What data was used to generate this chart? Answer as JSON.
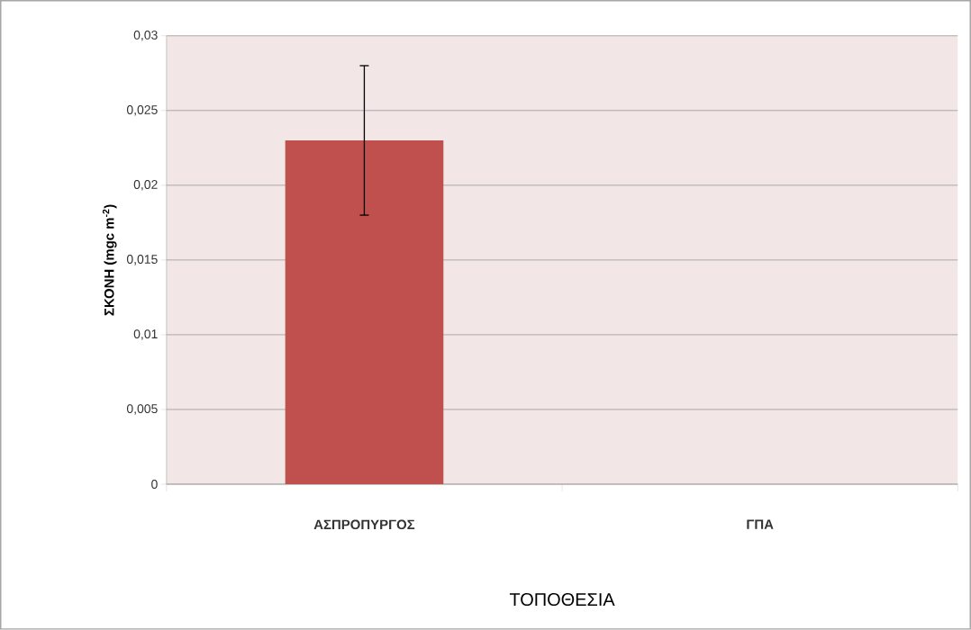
{
  "chart_data": {
    "type": "bar",
    "xlabel": "ΤΟΠΟΘΕΣΙΑ",
    "ylabel": "ΣΚΟΝΗ (mgc m$^{-2}$)",
    "categories": [
      "ΑΣΠΡΟΠΥΡΓΟΣ",
      "ΓΠΑ"
    ],
    "values": [
      0.023,
      null
    ],
    "errors": [
      0.005,
      null
    ],
    "color": "#c0504d",
    "ylim": [
      0,
      0.03
    ],
    "yticks": [
      0,
      {
        "value": 0.005,
        "label": "0,005"
      },
      {
        "value": 0.01,
        "label": "0,01"
      },
      {
        "value": 0.015,
        "label": "0,015"
      },
      {
        "value": 0.02,
        "label": "0,02"
      },
      {
        "value": 0.025,
        "label": "0,025"
      },
      {
        "value": 0.03,
        "label": "0,03"
      }
    ],
    "grid": "y"
  }
}
